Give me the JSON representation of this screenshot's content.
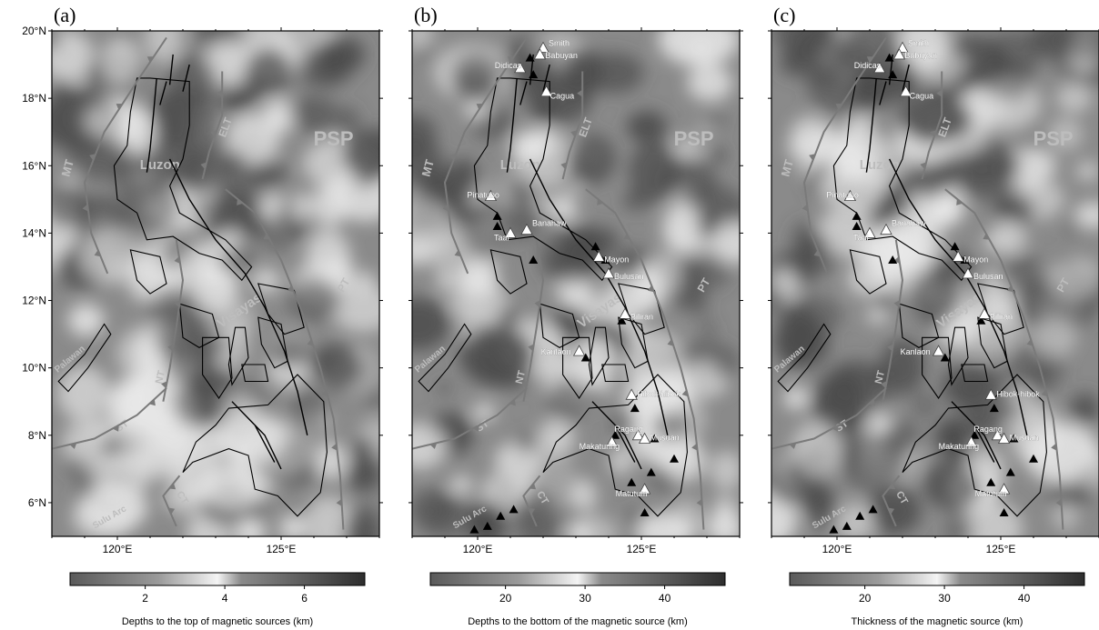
{
  "panels": [
    {
      "letter": "(a)",
      "colorbar_ticks": [
        "2",
        "4",
        "6"
      ],
      "colorbar_label": "Depths to the top of magnetic sources (km)",
      "show_volcanoes": false
    },
    {
      "letter": "(b)",
      "colorbar_ticks": [
        "20",
        "30",
        "40"
      ],
      "colorbar_label": "Depths to the bottom of the magnetic source (km)",
      "show_volcanoes": true
    },
    {
      "letter": "(c)",
      "colorbar_ticks": [
        "20",
        "30",
        "40"
      ],
      "colorbar_label": "Thickness of the magnetic source (km)",
      "show_volcanoes": true
    }
  ],
  "lat_ticks": [
    "20°N",
    "18°N",
    "16°N",
    "14°N",
    "12°N",
    "10°N",
    "8°N",
    "6°N"
  ],
  "lon_ticks": [
    "120°E",
    "125°E"
  ],
  "map_labels": {
    "psp": "PSP",
    "luzon": "Luzon",
    "visayas": "Visayas",
    "mt": "MT",
    "elt": "ELT",
    "pt": "PT",
    "nt": "NT",
    "st": "ST",
    "ct": "CT",
    "palawan": "Palawan",
    "sulu_arc": "Sulu Arc"
  },
  "volcanoes": [
    "Smith",
    "Babuyan",
    "Didicas",
    "Cagua",
    "Pinatubo",
    "Taal",
    "Banahaw",
    "Mayon",
    "Bulusan",
    "Biliran",
    "Kanlaon",
    "Hibok-hibok",
    "Ragang",
    "Makaturing",
    "Musuan",
    "Matutum"
  ],
  "colors": {
    "background": "#ffffff",
    "map_base": "#8a8a8a",
    "trench": "#7a7a7a",
    "coast": "#000000",
    "light_patch": "#e8e8e8",
    "dark_patch": "#4a4a4a"
  }
}
